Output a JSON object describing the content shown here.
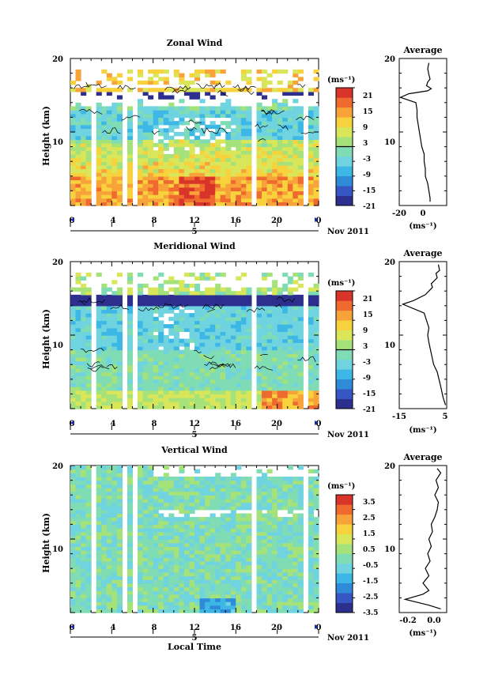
{
  "figure": {
    "date_label": "Nov 2011",
    "day_label": "5",
    "xlabel_bottom": "Local Time"
  },
  "chart_data": [
    {
      "type": "heatmap",
      "title": "Zonal Wind",
      "xlabel": "",
      "ylabel": "Height (km)",
      "xlim": [
        0,
        24
      ],
      "ylim": [
        0,
        20
      ],
      "xticks": [
        "0",
        "4",
        "8",
        "12",
        "16",
        "20",
        "0"
      ],
      "yticks": [
        "10",
        "20"
      ],
      "colorbar": {
        "unit": "(ms⁻¹)",
        "range": [
          -24,
          24
        ],
        "ticks": [
          "21",
          "15",
          "9",
          "3",
          "-3",
          "-9",
          "-15",
          "-21"
        ]
      },
      "profile": {
        "title": "Average",
        "xlabel": "(ms⁻¹)",
        "xlim": [
          -20,
          20
        ],
        "xticks": [
          "-20",
          "0"
        ],
        "yticks": [
          "10",
          "20"
        ],
        "points": [
          [
            6,
            0.5
          ],
          [
            6,
            1
          ],
          [
            5,
            2
          ],
          [
            4,
            3
          ],
          [
            2,
            4
          ],
          [
            2,
            5
          ],
          [
            1,
            6
          ],
          [
            1,
            7
          ],
          [
            -1,
            8
          ],
          [
            -2,
            9
          ],
          [
            -3,
            10
          ],
          [
            -4,
            11
          ],
          [
            -5,
            12
          ],
          [
            -5,
            13
          ],
          [
            -6,
            14
          ],
          [
            -19,
            14.7
          ],
          [
            -12,
            15.2
          ],
          [
            4,
            15.6
          ],
          [
            7,
            15.9
          ],
          [
            3,
            16.3
          ],
          [
            4,
            16.8
          ],
          [
            6,
            17.2
          ],
          [
            5,
            17.8
          ],
          [
            4,
            18.6
          ],
          [
            5,
            19.4
          ]
        ]
      }
    },
    {
      "type": "heatmap",
      "title": "Meridional Wind",
      "xlabel": "",
      "ylabel": "Height (km)",
      "xlim": [
        0,
        24
      ],
      "ylim": [
        0,
        20
      ],
      "xticks": [
        "0",
        "4",
        "8",
        "12",
        "16",
        "20",
        "0"
      ],
      "yticks": [
        "10",
        "20"
      ],
      "colorbar": {
        "unit": "(ms⁻¹)",
        "range": [
          -24,
          24
        ],
        "ticks": [
          "21",
          "15",
          "9",
          "3",
          "-3",
          "-9",
          "-15",
          "-21"
        ]
      },
      "profile": {
        "title": "Average",
        "xlabel": "(ms⁻¹)",
        "xlim": [
          -15,
          5
        ],
        "xticks": [
          "-15",
          "5"
        ],
        "yticks": [
          "10",
          "20"
        ],
        "points": [
          [
            4.5,
            0.5
          ],
          [
            3.5,
            1.5
          ],
          [
            2.5,
            3
          ],
          [
            1,
            5
          ],
          [
            -0.5,
            6
          ],
          [
            -1.5,
            7.5
          ],
          [
            -2.5,
            9
          ],
          [
            -3,
            10
          ],
          [
            -2.5,
            11
          ],
          [
            -3.5,
            12
          ],
          [
            -4.5,
            13
          ],
          [
            -13.5,
            14.2
          ],
          [
            -9,
            14.7
          ],
          [
            -4,
            15.5
          ],
          [
            -1,
            16.5
          ],
          [
            -1.5,
            17
          ],
          [
            1,
            17.8
          ],
          [
            0.5,
            18.4
          ],
          [
            2,
            18.8
          ],
          [
            1.5,
            19.6
          ]
        ]
      }
    },
    {
      "type": "heatmap",
      "title": "Vertical Wind",
      "xlabel": "Local Time",
      "ylabel": "Height (km)",
      "xlim": [
        0,
        24
      ],
      "ylim": [
        0,
        20
      ],
      "xticks": [
        "0",
        "4",
        "8",
        "12",
        "16",
        "20",
        "0"
      ],
      "yticks": [
        "10",
        "20"
      ],
      "colorbar": {
        "unit": "(ms⁻¹)",
        "range": [
          -4,
          4
        ],
        "ticks": [
          "3.5",
          "2.5",
          "1.5",
          "0.5",
          "-0.5",
          "-1.5",
          "-2.5",
          "-3.5"
        ]
      },
      "profile": {
        "title": "Average",
        "xlabel": "(ms⁻¹)",
        "xlim": [
          -0.3,
          0.1
        ],
        "xticks": [
          "-0.2",
          "0.0"
        ],
        "yticks": [
          "10",
          "20"
        ],
        "points": [
          [
            0.05,
            0.5
          ],
          [
            -0.05,
            1
          ],
          [
            -0.25,
            1.8
          ],
          [
            -0.1,
            2.5
          ],
          [
            -0.05,
            3
          ],
          [
            -0.1,
            4
          ],
          [
            -0.05,
            5
          ],
          [
            -0.08,
            6
          ],
          [
            -0.04,
            7
          ],
          [
            -0.06,
            8
          ],
          [
            -0.03,
            9
          ],
          [
            -0.05,
            10
          ],
          [
            -0.02,
            11
          ],
          [
            -0.03,
            12
          ],
          [
            0.0,
            13
          ],
          [
            0.02,
            14
          ],
          [
            0.03,
            15
          ],
          [
            0.0,
            16
          ],
          [
            0.03,
            17
          ],
          [
            0.01,
            18
          ],
          [
            0.05,
            19
          ],
          [
            0.02,
            19.6
          ]
        ]
      }
    }
  ]
}
